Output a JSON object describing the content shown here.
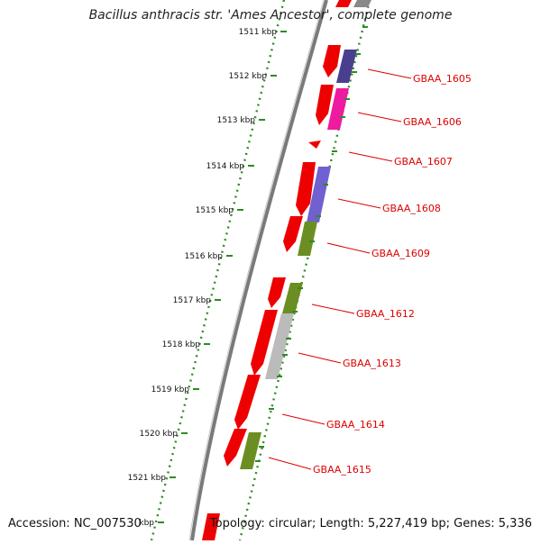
{
  "title": "Bacillus anthracis str. 'Ames Ancestor', complete genome",
  "footer": {
    "accession": "Accession: NC_007530",
    "info": "Topology: circular; Length: 5,227,419 bp; Genes: 5,336"
  },
  "scale": {
    "unit": "kbp",
    "ticks": [
      "1511 kbp",
      "1512 kbp",
      "1513 kbp",
      "1514 kbp",
      "1515 kbp",
      "1516 kbp",
      "1517 kbp",
      "1518 kbp",
      "1519 kbp",
      "1520 kbp",
      "1521 kbp",
      "kbp"
    ]
  },
  "genes": [
    {
      "label": "GBAA_1605"
    },
    {
      "label": "GBAA_1606"
    },
    {
      "label": "GBAA_1607"
    },
    {
      "label": "GBAA_1608"
    },
    {
      "label": "GBAA_1609"
    },
    {
      "label": "GBAA_1612"
    },
    {
      "label": "GBAA_1613"
    },
    {
      "label": "GBAA_1614"
    },
    {
      "label": "GBAA_1615"
    }
  ],
  "colors": {
    "background": "#ffffff",
    "backbone": "#7a7a7a",
    "scale_ticks": "#2e8b22",
    "gene_red": "#ee0000",
    "label_red": "#dd0000",
    "purple": "#4a3f8f",
    "magenta": "#ee1aa0",
    "violet": "#7060d0",
    "olive": "#6b8e23",
    "grey": "#bbbbbb"
  }
}
